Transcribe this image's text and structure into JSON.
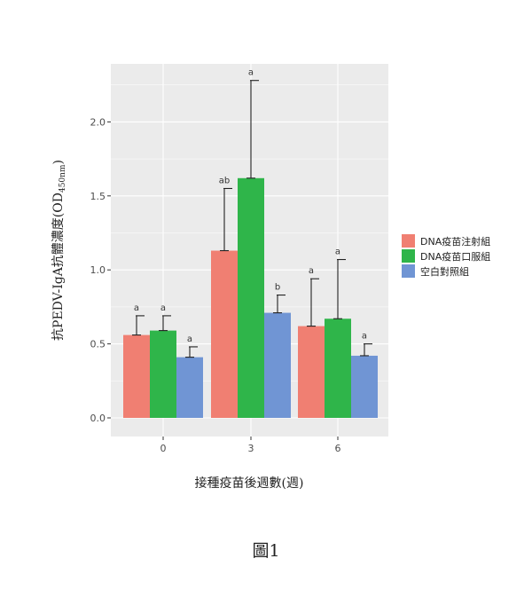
{
  "caption": "圖1",
  "chart_data": {
    "type": "bar",
    "categories": [
      "0",
      "3",
      "6"
    ],
    "xlabel": "接種疫苗後週數(週)",
    "ylabel_main": "抗PEDV-IgA抗體濃度(OD",
    "ylabel_sub": "450nm",
    "ylabel_end": ")",
    "ylim": [
      0,
      2.4
    ],
    "yticks": [
      0.0,
      0.5,
      1.0,
      1.5,
      2.0
    ],
    "ytick_labels": [
      "0.0",
      "0.5",
      "1.0",
      "1.5",
      "2.0"
    ],
    "grid": true,
    "legend_position": "right",
    "series": [
      {
        "name": "DNA疫苗注射組",
        "color": "#f07f72",
        "values": [
          0.56,
          1.13,
          0.62
        ],
        "errors": [
          0.13,
          0.42,
          0.32
        ],
        "labels": [
          "a",
          "ab",
          "a"
        ]
      },
      {
        "name": "DNA疫苗口服組",
        "color": "#2fb54a",
        "values": [
          0.59,
          1.62,
          0.67
        ],
        "errors": [
          0.1,
          0.66,
          0.4
        ],
        "labels": [
          "a",
          "a",
          "a"
        ]
      },
      {
        "name": "空白對照組",
        "color": "#7095d4",
        "values": [
          0.41,
          0.71,
          0.42
        ],
        "errors": [
          0.07,
          0.12,
          0.08
        ],
        "labels": [
          "a",
          "b",
          "a"
        ]
      }
    ]
  }
}
